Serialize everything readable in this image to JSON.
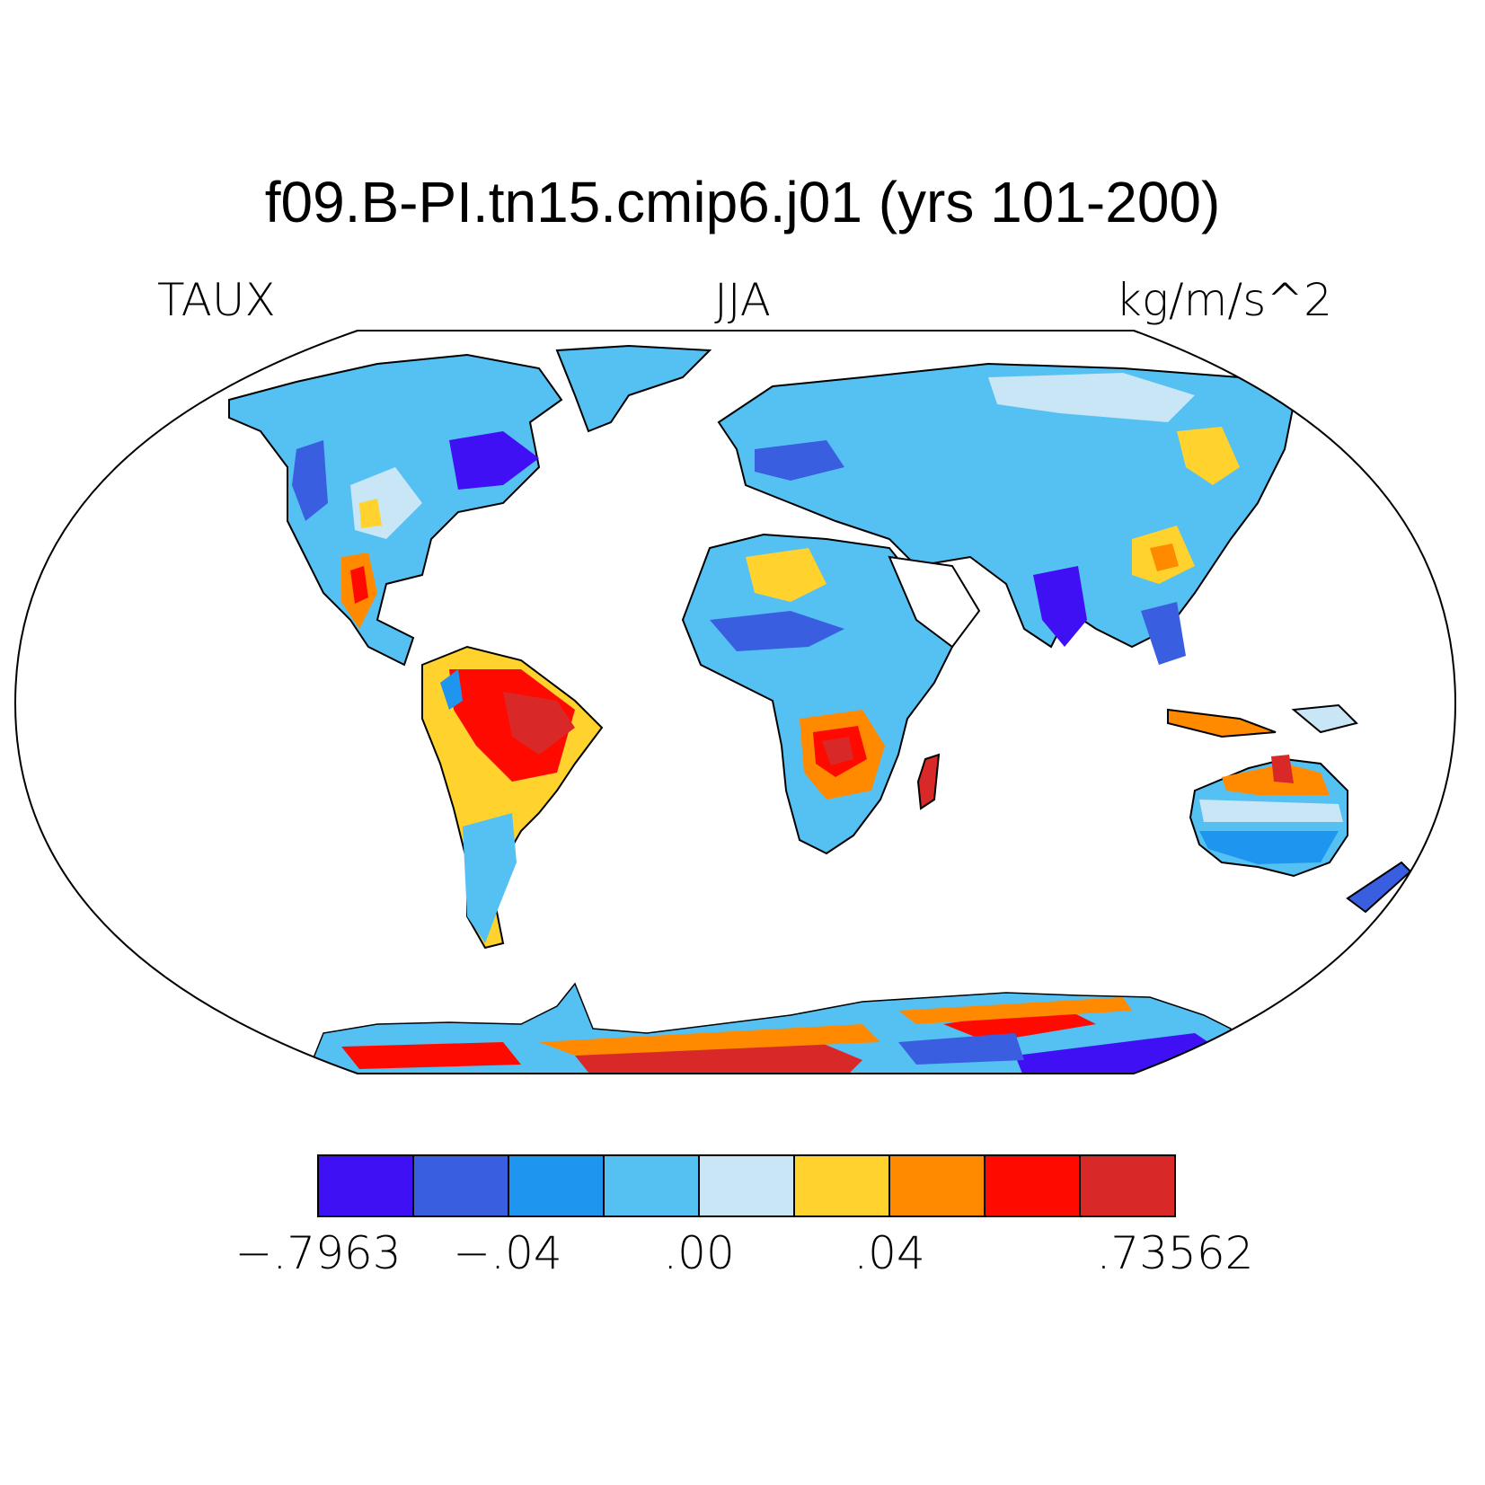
{
  "title": "f09.B-PI.tn15.cmip6.j01 (yrs 101-200)",
  "left_label": "TAUX",
  "center_label": "JJA",
  "right_label": "kg/m/s^2",
  "colorbar": {
    "colors": [
      "#4010f5",
      "#3a5ee0",
      "#1e96f0",
      "#55c1f2",
      "#c8e6f5",
      "#ffd22e",
      "#ff8a00",
      "#ff0a00",
      "#d92828"
    ],
    "tick_labels": [
      "−.7963",
      "−.04",
      ".00",
      ".04",
      ".73562"
    ]
  }
}
